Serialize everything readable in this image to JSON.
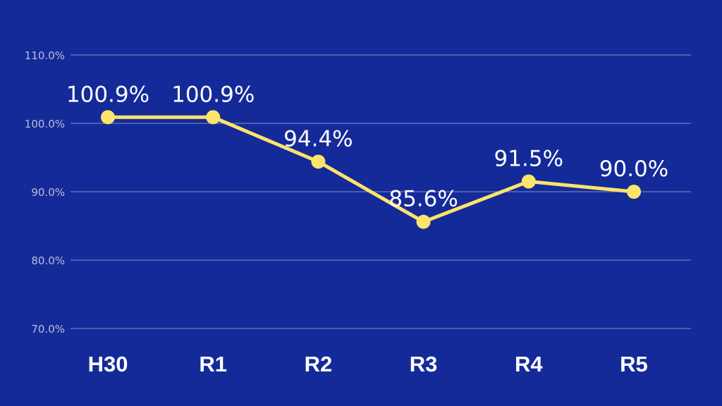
{
  "chart_data": {
    "type": "line",
    "categories": [
      "H30",
      "R1",
      "R2",
      "R3",
      "R4",
      "R5"
    ],
    "series": [
      {
        "values": [
          100.9,
          100.9,
          94.4,
          85.6,
          91.5,
          90.0
        ],
        "labels": [
          "100.9%",
          "100.9%",
          "94.4%",
          "85.6%",
          "91.5%",
          "90.0%"
        ]
      }
    ],
    "ylim": [
      70,
      110
    ],
    "yticks": [
      70,
      80,
      90,
      100,
      110
    ],
    "ytick_labels": [
      "70.0%",
      "80.0%",
      "90.0%",
      "100.0%",
      "110.0%"
    ],
    "grid": true,
    "title": "",
    "xlabel": "",
    "ylabel": ""
  },
  "colors": {
    "background": "#152a99",
    "line": "#fbe46b",
    "grid": "#8791c4",
    "tick_text": "#b9bfd9",
    "label_text": "#ffffff"
  }
}
